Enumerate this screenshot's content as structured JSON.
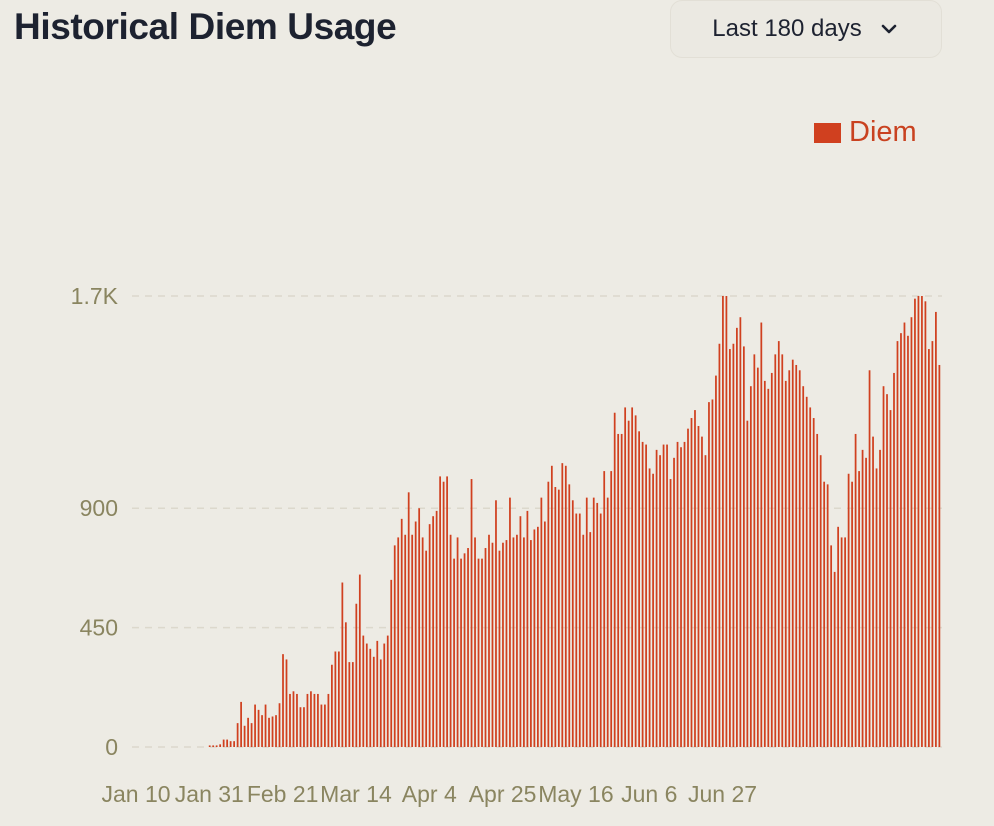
{
  "header": {
    "title": "Historical Diem Usage",
    "range_selector": {
      "selected": "Last 180 days",
      "icon": "chevron-down-icon"
    }
  },
  "colors": {
    "bar": "#d0401f",
    "legend_text": "#c94220",
    "axis_text": "#8a8560",
    "grid": "#dcd8cc",
    "background": "#edebe4"
  },
  "chart_data": {
    "type": "bar",
    "title": "Historical Diem Usage",
    "xlabel": "",
    "ylabel": "",
    "ylim": [
      0,
      1700
    ],
    "y_ticks": [
      0,
      450,
      900,
      1700
    ],
    "y_tick_labels": [
      "0",
      "450",
      "900",
      "1.7K"
    ],
    "x_start": "Jan 10",
    "x_end": "Jul 7",
    "x_ticks": [
      "Jan 10",
      "Jan 31",
      "Feb 21",
      "Mar 14",
      "Apr 4",
      "Apr 25",
      "May 16",
      "Jun 6",
      "Jun 27"
    ],
    "grid": "horizontal dashed",
    "legend": "top-right",
    "series": [
      {
        "name": "Diem",
        "values": [
          0,
          0,
          0,
          0,
          0,
          0,
          0,
          0,
          0,
          0,
          0,
          0,
          0,
          0,
          0,
          0,
          0,
          0,
          0,
          0,
          0,
          0,
          6,
          6,
          6,
          10,
          28,
          28,
          22,
          22,
          90,
          170,
          80,
          110,
          90,
          160,
          140,
          120,
          160,
          110,
          115,
          120,
          165,
          350,
          330,
          200,
          210,
          200,
          150,
          150,
          200,
          210,
          200,
          200,
          160,
          160,
          200,
          310,
          360,
          360,
          620,
          470,
          320,
          320,
          540,
          650,
          420,
          390,
          370,
          340,
          400,
          330,
          390,
          420,
          630,
          760,
          790,
          860,
          800,
          960,
          800,
          850,
          900,
          790,
          740,
          840,
          870,
          890,
          1020,
          1000,
          1020,
          800,
          710,
          790,
          710,
          730,
          750,
          1010,
          790,
          710,
          710,
          750,
          800,
          770,
          930,
          740,
          770,
          780,
          940,
          790,
          800,
          870,
          790,
          890,
          780,
          820,
          830,
          940,
          850,
          1000,
          1060,
          980,
          970,
          1070,
          1060,
          990,
          930,
          880,
          880,
          800,
          940,
          810,
          940,
          920,
          880,
          1040,
          940,
          1040,
          1260,
          1180,
          1180,
          1280,
          1230,
          1280,
          1250,
          1190,
          1150,
          1140,
          1050,
          1030,
          1120,
          1100,
          1140,
          1140,
          1010,
          1090,
          1150,
          1130,
          1150,
          1200,
          1240,
          1270,
          1210,
          1170,
          1100,
          1300,
          1310,
          1400,
          1520,
          1700,
          1700,
          1500,
          1520,
          1580,
          1620,
          1510,
          1230,
          1360,
          1480,
          1430,
          1600,
          1380,
          1350,
          1410,
          1480,
          1530,
          1480,
          1380,
          1420,
          1460,
          1440,
          1420,
          1360,
          1320,
          1280,
          1240,
          1180,
          1100,
          1000,
          990,
          760,
          660,
          830,
          790,
          790,
          1030,
          1000,
          1180,
          1040,
          1120,
          1090,
          1420,
          1170,
          1050,
          1120,
          1360,
          1330,
          1270,
          1410,
          1530,
          1560,
          1600,
          1550,
          1620,
          1690,
          1700,
          1700,
          1680,
          1500,
          1530,
          1640,
          1440
        ]
      }
    ]
  }
}
